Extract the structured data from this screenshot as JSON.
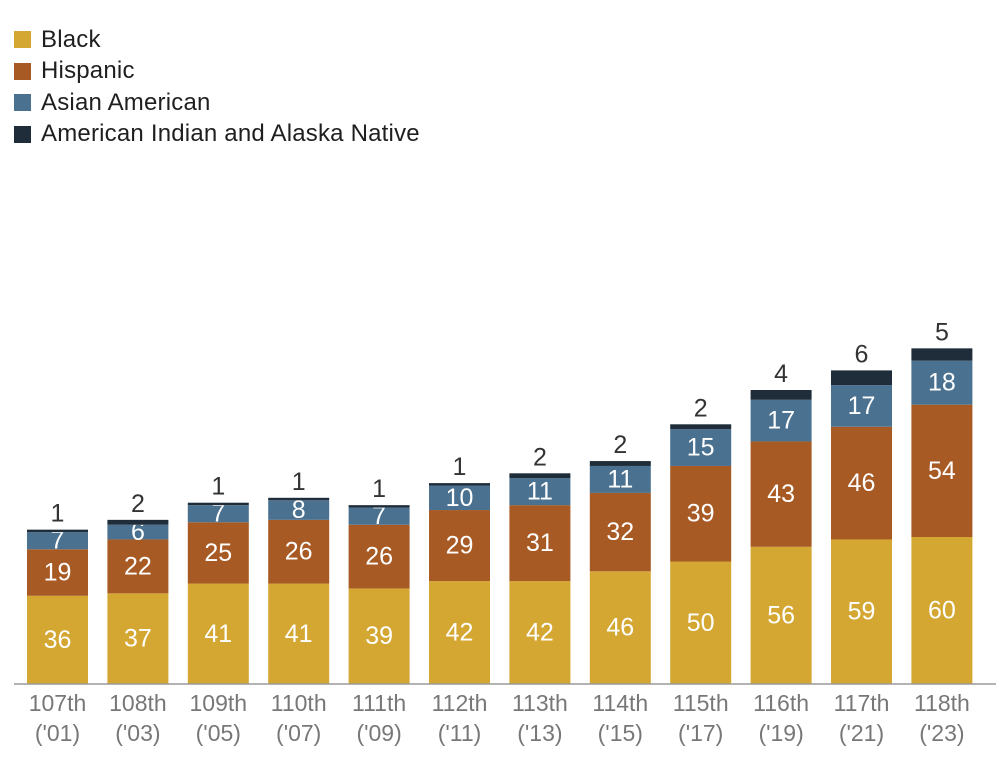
{
  "colors": {
    "black": "#d4a732",
    "hispanic": "#a85a24",
    "asian": "#4a7190",
    "aian": "#1f2d3a",
    "axis": "#9a9a9a"
  },
  "legend": [
    {
      "label": "Black",
      "color": "#d4a732"
    },
    {
      "label": "Hispanic",
      "color": "#a85a24"
    },
    {
      "label": "Asian American",
      "color": "#4a7190"
    },
    {
      "label": "American Indian and Alaska Native",
      "color": "#1f2d3a"
    }
  ],
  "chart_data": {
    "type": "bar",
    "stacked": true,
    "categories": [
      "107th",
      "108th",
      "109th",
      "110th",
      "111th",
      "112th",
      "113th",
      "114th",
      "115th",
      "116th",
      "117th",
      "118th"
    ],
    "category_sublabels": [
      "('01)",
      "('03)",
      "('05)",
      "('07)",
      "('09)",
      "('11)",
      "('13)",
      "('15)",
      "('17)",
      "('19)",
      "('21)",
      "('23)"
    ],
    "series": [
      {
        "name": "Black",
        "values": [
          36,
          37,
          41,
          41,
          39,
          42,
          42,
          46,
          50,
          56,
          59,
          60
        ]
      },
      {
        "name": "Hispanic",
        "values": [
          19,
          22,
          25,
          26,
          26,
          29,
          31,
          32,
          39,
          43,
          46,
          54
        ]
      },
      {
        "name": "Asian American",
        "values": [
          7,
          6,
          7,
          8,
          7,
          10,
          11,
          11,
          15,
          17,
          17,
          18
        ]
      },
      {
        "name": "American Indian and Alaska Native",
        "values": [
          1,
          2,
          1,
          1,
          1,
          1,
          2,
          2,
          2,
          4,
          6,
          5
        ]
      }
    ],
    "title": "",
    "xlabel": "",
    "ylabel": "",
    "ylim": [
      0,
      140
    ],
    "grid": false,
    "legend_position": "top-left"
  }
}
